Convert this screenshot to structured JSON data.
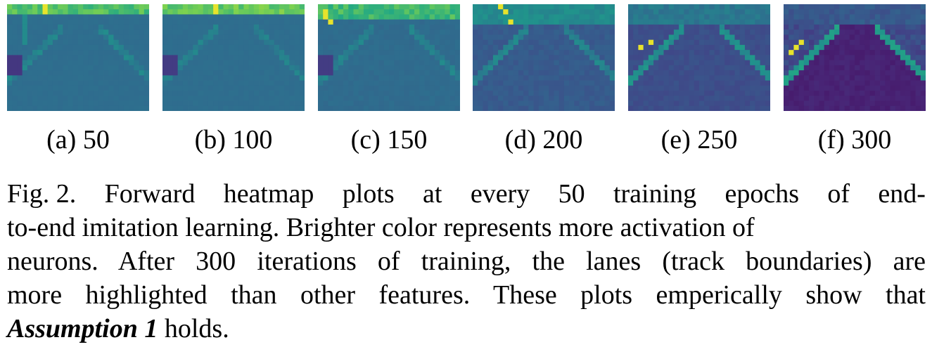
{
  "panels": [
    {
      "label": "(a) 50",
      "epoch": 50
    },
    {
      "label": "(b) 100",
      "epoch": 100
    },
    {
      "label": "(c) 150",
      "epoch": 150
    },
    {
      "label": "(d) 200",
      "epoch": 200
    },
    {
      "label": "(e) 250",
      "epoch": 250
    },
    {
      "label": "(f) 300",
      "epoch": 300
    }
  ],
  "caption": {
    "fig_label": "Fig. 2.",
    "line1_words": [
      "Forward",
      "heatmap",
      "plots",
      "at",
      "every",
      "50",
      "training",
      "epochs",
      "of",
      "end-"
    ],
    "line2": "to-end imitation learning. Brighter color represents more activation of",
    "line3": "neurons. After 300 iterations of training, the lanes (track boundaries) are",
    "line4": "more highlighted than other features. These plots emperically show that",
    "assumption": "Assumption 1",
    "holds": " holds."
  },
  "colormap": "viridis"
}
